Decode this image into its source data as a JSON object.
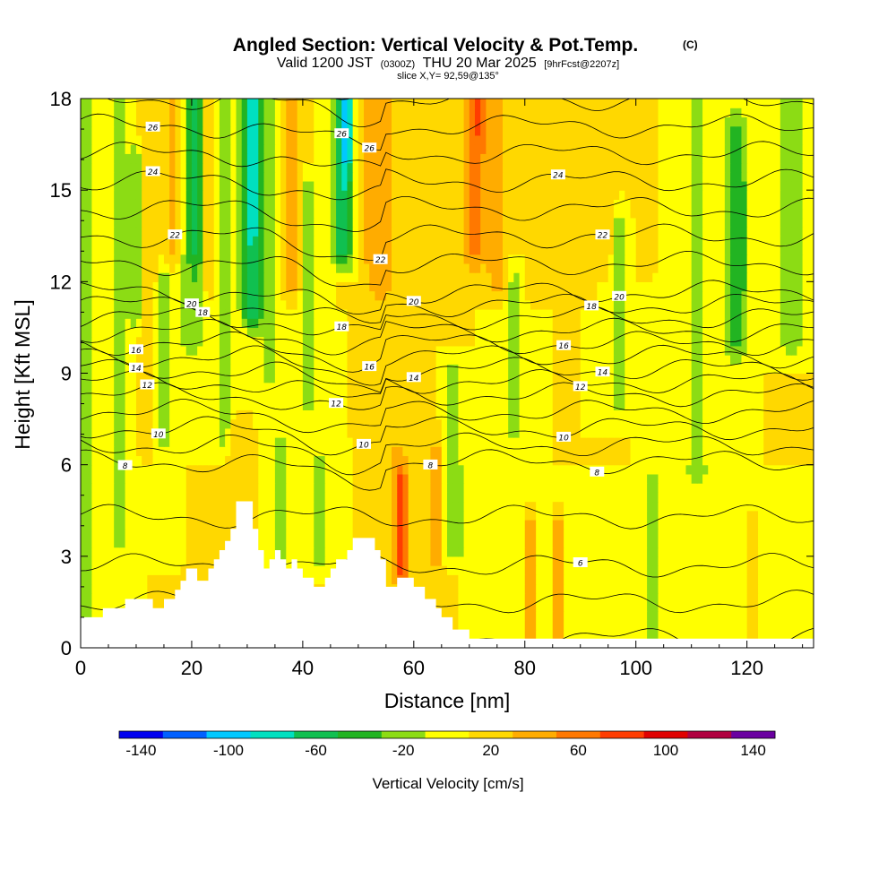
{
  "header": {
    "title": "Angled Section: Vertical Velocity & Pot.Temp.",
    "title_mark": "(C)",
    "valid_prefix": "Valid 1200 JST",
    "valid_utc": "(0300Z)",
    "valid_date": "THU 20 Mar 2025",
    "forecast_info": "[9hrFcst@2207z]",
    "slice": "slice X,Y= 92,59@135°"
  },
  "chart_data": {
    "type": "heatmap",
    "xlabel": "Distance [nm]",
    "ylabel": "Height [Kft MSL]",
    "xlim": [
      0,
      132
    ],
    "ylim": [
      0,
      18
    ],
    "x_ticks": [
      "0",
      "20",
      "40",
      "60",
      "80",
      "100",
      "120"
    ],
    "y_ticks": [
      "0",
      "3",
      "6",
      "9",
      "12",
      "15",
      "18"
    ],
    "terrain_profile": [
      [
        0,
        1.0
      ],
      [
        4,
        1.0
      ],
      [
        4,
        1.3
      ],
      [
        8,
        1.3
      ],
      [
        8,
        1.6
      ],
      [
        13,
        1.6
      ],
      [
        13,
        1.3
      ],
      [
        15,
        1.3
      ],
      [
        15,
        1.6
      ],
      [
        17,
        1.6
      ],
      [
        17,
        1.9
      ],
      [
        18,
        1.9
      ],
      [
        18,
        2.2
      ],
      [
        19,
        2.2
      ],
      [
        19,
        2.6
      ],
      [
        21,
        2.6
      ],
      [
        21,
        2.2
      ],
      [
        23,
        2.2
      ],
      [
        23,
        2.6
      ],
      [
        24,
        2.6
      ],
      [
        24,
        2.9
      ],
      [
        25,
        2.9
      ],
      [
        25,
        3.2
      ],
      [
        26,
        3.2
      ],
      [
        26,
        3.5
      ],
      [
        27,
        3.5
      ],
      [
        27,
        3.9
      ],
      [
        28,
        3.9
      ],
      [
        28,
        4.8
      ],
      [
        31,
        4.8
      ],
      [
        31,
        3.9
      ],
      [
        32,
        3.9
      ],
      [
        32,
        3.2
      ],
      [
        33,
        3.2
      ],
      [
        33,
        2.6
      ],
      [
        34,
        2.6
      ],
      [
        34,
        2.9
      ],
      [
        35,
        2.9
      ],
      [
        35,
        3.2
      ],
      [
        36,
        3.2
      ],
      [
        36,
        2.9
      ],
      [
        37,
        2.9
      ],
      [
        37,
        2.6
      ],
      [
        38,
        2.6
      ],
      [
        38,
        2.9
      ],
      [
        39,
        2.9
      ],
      [
        39,
        2.6
      ],
      [
        40,
        2.6
      ],
      [
        40,
        2.3
      ],
      [
        42,
        2.3
      ],
      [
        42,
        2.0
      ],
      [
        44,
        2.0
      ],
      [
        44,
        2.3
      ],
      [
        45,
        2.3
      ],
      [
        45,
        2.6
      ],
      [
        46,
        2.6
      ],
      [
        46,
        2.9
      ],
      [
        48,
        2.9
      ],
      [
        48,
        3.2
      ],
      [
        49,
        3.2
      ],
      [
        49,
        3.6
      ],
      [
        53,
        3.6
      ],
      [
        53,
        3.2
      ],
      [
        54,
        3.2
      ],
      [
        54,
        2.9
      ],
      [
        55,
        2.9
      ],
      [
        55,
        2.0
      ],
      [
        57,
        2.0
      ],
      [
        57,
        2.3
      ],
      [
        60,
        2.3
      ],
      [
        60,
        2.0
      ],
      [
        62,
        2.0
      ],
      [
        62,
        1.6
      ],
      [
        64,
        1.6
      ],
      [
        64,
        1.3
      ],
      [
        65,
        1.3
      ],
      [
        65,
        1.0
      ],
      [
        67,
        1.0
      ],
      [
        67,
        0.6
      ],
      [
        70,
        0.6
      ],
      [
        70,
        0.3
      ],
      [
        132,
        0.3
      ]
    ],
    "vertical_velocity": {
      "units": "cm/s",
      "background": 10,
      "features": [
        {
          "x": 1,
          "w": 1.8,
          "y0": 0,
          "y1": 18,
          "v": -20
        },
        {
          "x": 7,
          "w": 2.0,
          "y0": 3.5,
          "y1": 18,
          "v": -20
        },
        {
          "x": 10,
          "w": 1.0,
          "y0": 11,
          "y1": 16,
          "v": -40
        },
        {
          "x": 12,
          "w": 1.2,
          "y0": 7,
          "y1": 18,
          "v": 30
        },
        {
          "x": 15,
          "w": 1.0,
          "y0": 7,
          "y1": 12,
          "v": -30
        },
        {
          "x": 17,
          "w": 1.8,
          "y0": 13,
          "y1": 18,
          "v": 40
        },
        {
          "x": 20,
          "w": 2.2,
          "y0": 10,
          "y1": 18,
          "v": -30
        },
        {
          "x": 21,
          "w": 1.0,
          "y0": 13,
          "y1": 18,
          "v": -60
        },
        {
          "x": 24,
          "w": 1.6,
          "y0": 12,
          "y1": 18,
          "v": 40
        },
        {
          "x": 26,
          "w": 1.8,
          "y0": 7,
          "y1": 18,
          "v": -20
        },
        {
          "x": 28,
          "w": 1.2,
          "y0": 3,
          "y1": 7,
          "v": 30
        },
        {
          "x": 31,
          "w": 2.0,
          "y0": 11,
          "y1": 18,
          "v": -70
        },
        {
          "x": 31,
          "w": 0.8,
          "y0": 14,
          "y1": 18,
          "v": -90
        },
        {
          "x": 34,
          "w": 1.6,
          "y0": 9,
          "y1": 18,
          "v": -30
        },
        {
          "x": 36,
          "w": 1.2,
          "y0": 3,
          "y1": 6.5,
          "v": -30
        },
        {
          "x": 38,
          "w": 1.6,
          "y0": 12,
          "y1": 18,
          "v": 40
        },
        {
          "x": 41,
          "w": 1.2,
          "y0": 8,
          "y1": 15,
          "v": -20
        },
        {
          "x": 43,
          "w": 1.0,
          "y0": 3,
          "y1": 6,
          "v": -30
        },
        {
          "x": 47.5,
          "w": 2.0,
          "y0": 13,
          "y1": 18,
          "v": -70
        },
        {
          "x": 48,
          "w": 0.7,
          "y0": 16,
          "y1": 18,
          "v": -120
        },
        {
          "x": 51,
          "w": 1.8,
          "y0": 13,
          "y1": 18,
          "v": 30
        },
        {
          "x": 54,
          "w": 2.2,
          "y0": 12,
          "y1": 18,
          "v": 50
        },
        {
          "x": 57,
          "w": 1.2,
          "y0": 2.5,
          "y1": 6.5,
          "v": 40
        },
        {
          "x": 58,
          "w": 0.8,
          "y0": 2.5,
          "y1": 5.5,
          "v": 90
        },
        {
          "x": 61,
          "w": 1.4,
          "y0": 8,
          "y1": 18,
          "v": 30
        },
        {
          "x": 64,
          "w": 1.2,
          "y0": 3,
          "y1": 6.5,
          "v": 40
        },
        {
          "x": 67,
          "w": 1.5,
          "y0": 3.5,
          "y1": 9,
          "v": -30
        },
        {
          "x": 71,
          "w": 2.5,
          "y0": 13,
          "y1": 18,
          "v": 60
        },
        {
          "x": 72,
          "w": 1.2,
          "y0": 17,
          "y1": 18,
          "v": 80
        },
        {
          "x": 75,
          "w": 2.0,
          "y0": 12,
          "y1": 18,
          "v": 40
        },
        {
          "x": 78,
          "w": 1.2,
          "y0": 7,
          "y1": 12,
          "v": -20
        },
        {
          "x": 81,
          "w": 1.0,
          "y0": 0.3,
          "y1": 4,
          "v": 60
        },
        {
          "x": 85,
          "w": 2.5,
          "y0": 12,
          "y1": 18,
          "v": 30
        },
        {
          "x": 86,
          "w": 1.0,
          "y0": 0.3,
          "y1": 4,
          "v": 60
        },
        {
          "x": 95,
          "w": 2.5,
          "y0": 13,
          "y1": 18,
          "v": 20
        },
        {
          "x": 97,
          "w": 1.2,
          "y0": 8,
          "y1": 14,
          "v": -20
        },
        {
          "x": 103,
          "w": 1.2,
          "y0": 0.3,
          "y1": 5,
          "v": -20
        },
        {
          "x": 111,
          "w": 2.0,
          "y0": 6,
          "y1": 18,
          "v": -20
        },
        {
          "x": 118,
          "w": 2.5,
          "y0": 10,
          "y1": 17,
          "v": -40
        },
        {
          "x": 118.5,
          "w": 1.0,
          "y0": 12,
          "y1": 15,
          "v": -50
        },
        {
          "x": 121,
          "w": 1.0,
          "y0": 0.3,
          "y1": 4,
          "v": 30
        },
        {
          "x": 128,
          "w": 3.0,
          "y0": 10,
          "y1": 18,
          "v": -20
        }
      ]
    },
    "potential_temperature": {
      "units": "C",
      "contour_interval": 2,
      "labeled_values": [
        "26",
        "26",
        "26",
        "24",
        "24",
        "22",
        "22",
        "22",
        "20",
        "20",
        "20",
        "18",
        "18",
        "18",
        "16",
        "16",
        "16",
        "14",
        "14",
        "14",
        "12",
        "12",
        "12",
        "10",
        "10",
        "10",
        "8",
        "8",
        "8",
        "6"
      ]
    },
    "colorbar": {
      "title": "Vertical Velocity [cm/s]",
      "labels": [
        "-140",
        "-100",
        "-60",
        "-20",
        "20",
        "60",
        "100",
        "140"
      ],
      "colors": [
        "#0000f0",
        "#0060ff",
        "#00c8ff",
        "#00e0c0",
        "#10c050",
        "#22b422",
        "#8cdc14",
        "#ffff00",
        "#ffd800",
        "#ffac00",
        "#ff7800",
        "#ff3c00",
        "#e00000",
        "#b00040",
        "#6a00a0"
      ]
    }
  }
}
